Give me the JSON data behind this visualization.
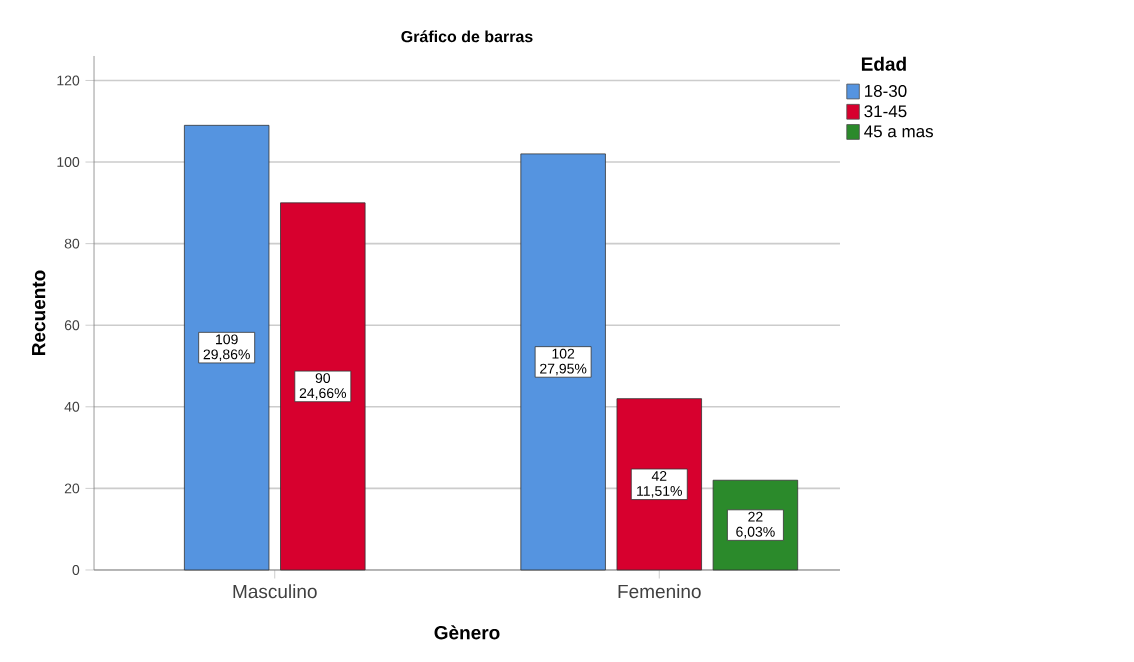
{
  "chart_data": {
    "type": "bar",
    "title": "Gráfico de barras",
    "xlabel": "Gènero",
    "ylabel": "Recuento",
    "legend_title": "Edad",
    "categories": [
      "Masculino",
      "Femenino"
    ],
    "series": [
      {
        "name": "18-30",
        "color": "#5594e0",
        "values": [
          109,
          102
        ],
        "value_labels": [
          "109 29,86%",
          "102 27,95%"
        ]
      },
      {
        "name": "31-45",
        "color": "#d7002e",
        "values": [
          90,
          42
        ],
        "value_labels": [
          "90 24,66%",
          "42 11,51%"
        ]
      },
      {
        "name": "45 a mas",
        "color": "#2b8a2b",
        "values": [
          null,
          22
        ],
        "value_labels": [
          null,
          "22 6,03%"
        ]
      }
    ],
    "ylim": [
      0,
      126
    ],
    "yticks": [
      0,
      20,
      40,
      60,
      80,
      100,
      120
    ],
    "grid": "y",
    "legend": "top right"
  }
}
